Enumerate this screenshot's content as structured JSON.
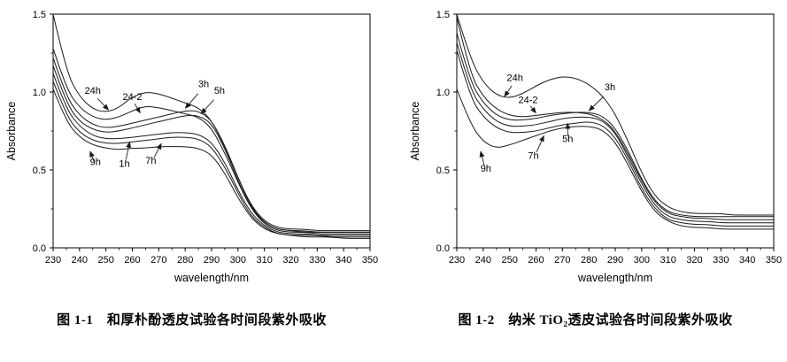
{
  "page": {
    "background": "#ffffff",
    "line_color": "#1a1a1a"
  },
  "chart_data": [
    {
      "name": "uv-absorbance-magnolol",
      "type": "line",
      "caption": "图 1-1　和厚朴酚透皮试验各时间段紫外吸收",
      "xlabel": "wavelength/nm",
      "ylabel": "Absorbance",
      "xlim": [
        230,
        350
      ],
      "ylim": [
        0,
        1.5
      ],
      "xticks": [
        230,
        240,
        250,
        260,
        270,
        280,
        290,
        300,
        310,
        320,
        330,
        340,
        350
      ],
      "yticks": [
        0,
        0.5,
        1.0,
        1.5
      ],
      "ytick_labels": [
        "0.0",
        "0.5",
        "1.0",
        "1.5"
      ],
      "x": [
        230,
        235,
        240,
        245,
        250,
        255,
        260,
        265,
        270,
        275,
        280,
        285,
        290,
        295,
        300,
        305,
        310,
        315,
        320,
        325,
        330,
        335,
        340,
        345,
        350
      ],
      "series": [
        {
          "name": "24h",
          "values": [
            1.5,
            1.13,
            0.97,
            0.89,
            0.87,
            0.9,
            0.97,
            1.0,
            0.99,
            0.96,
            0.93,
            0.9,
            0.82,
            0.65,
            0.45,
            0.27,
            0.17,
            0.13,
            0.12,
            0.12,
            0.11,
            0.11,
            0.11,
            0.11,
            0.11
          ]
        },
        {
          "name": "24-2",
          "values": [
            1.28,
            1.02,
            0.9,
            0.84,
            0.82,
            0.84,
            0.88,
            0.91,
            0.9,
            0.88,
            0.86,
            0.84,
            0.77,
            0.61,
            0.42,
            0.25,
            0.16,
            0.12,
            0.11,
            0.11,
            0.1,
            0.1,
            0.1,
            0.1,
            0.1
          ]
        },
        {
          "name": "3h",
          "values": [
            1.22,
            0.97,
            0.85,
            0.79,
            0.77,
            0.78,
            0.8,
            0.82,
            0.84,
            0.86,
            0.88,
            0.88,
            0.82,
            0.66,
            0.45,
            0.26,
            0.16,
            0.12,
            0.11,
            0.1,
            0.1,
            0.1,
            0.1,
            0.1,
            0.1
          ]
        },
        {
          "name": "5h",
          "values": [
            1.17,
            0.93,
            0.81,
            0.76,
            0.74,
            0.75,
            0.77,
            0.79,
            0.81,
            0.83,
            0.85,
            0.85,
            0.8,
            0.64,
            0.43,
            0.25,
            0.15,
            0.11,
            0.1,
            0.1,
            0.09,
            0.09,
            0.09,
            0.09,
            0.09
          ]
        },
        {
          "name": "1h",
          "values": [
            1.12,
            0.89,
            0.78,
            0.72,
            0.7,
            0.7,
            0.71,
            0.72,
            0.73,
            0.74,
            0.74,
            0.73,
            0.68,
            0.55,
            0.37,
            0.22,
            0.14,
            0.1,
            0.09,
            0.09,
            0.08,
            0.08,
            0.08,
            0.08,
            0.08
          ]
        },
        {
          "name": "7h",
          "values": [
            1.07,
            0.85,
            0.74,
            0.69,
            0.67,
            0.67,
            0.68,
            0.69,
            0.7,
            0.71,
            0.71,
            0.7,
            0.65,
            0.52,
            0.35,
            0.2,
            0.13,
            0.09,
            0.08,
            0.08,
            0.08,
            0.07,
            0.07,
            0.07,
            0.07
          ]
        },
        {
          "name": "9h",
          "values": [
            1.02,
            0.81,
            0.71,
            0.66,
            0.64,
            0.63,
            0.64,
            0.64,
            0.65,
            0.65,
            0.65,
            0.64,
            0.6,
            0.48,
            0.32,
            0.19,
            0.12,
            0.09,
            0.08,
            0.07,
            0.07,
            0.07,
            0.06,
            0.06,
            0.06
          ]
        }
      ],
      "annotations": [
        {
          "label": "24h",
          "tx": 245,
          "ty": 0.99,
          "ax": 251,
          "ay": 0.885
        },
        {
          "label": "24-2",
          "tx": 260,
          "ty": 0.95,
          "ax": 263,
          "ay": 0.865
        },
        {
          "label": "3h",
          "tx": 287,
          "ty": 1.03,
          "ax": 280,
          "ay": 0.895
        },
        {
          "label": "5h",
          "tx": 293,
          "ty": 0.99,
          "ax": 286,
          "ay": 0.86
        },
        {
          "label": "9h",
          "tx": 246,
          "ty": 0.53,
          "ax": 244,
          "ay": 0.62
        },
        {
          "label": "1h",
          "tx": 257,
          "ty": 0.52,
          "ax": 259,
          "ay": 0.68
        },
        {
          "label": "7h",
          "tx": 267,
          "ty": 0.54,
          "ax": 271,
          "ay": 0.67
        }
      ]
    },
    {
      "name": "uv-absorbance-nano-tio2",
      "type": "line",
      "caption": "图 1-2　纳米 TiO₂透皮试验各时间段紫外吸收",
      "xlabel": "wavelength/nm",
      "ylabel": "Absorbance",
      "xlim": [
        230,
        350
      ],
      "ylim": [
        0,
        1.5
      ],
      "xticks": [
        230,
        240,
        250,
        260,
        270,
        280,
        290,
        300,
        310,
        320,
        330,
        340,
        350
      ],
      "yticks": [
        0,
        0.5,
        1.0,
        1.5
      ],
      "ytick_labels": [
        "0.0",
        "0.5",
        "1.0",
        "1.5"
      ],
      "x": [
        230,
        235,
        240,
        245,
        250,
        255,
        260,
        265,
        270,
        275,
        280,
        285,
        290,
        295,
        300,
        305,
        310,
        315,
        320,
        325,
        330,
        335,
        340,
        345,
        350
      ],
      "series": [
        {
          "name": "24h",
          "values": [
            1.5,
            1.22,
            1.06,
            0.98,
            0.96,
            0.99,
            1.04,
            1.08,
            1.1,
            1.09,
            1.05,
            0.98,
            0.86,
            0.68,
            0.48,
            0.33,
            0.26,
            0.23,
            0.22,
            0.22,
            0.22,
            0.21,
            0.21,
            0.21,
            0.21
          ]
        },
        {
          "name": "24-2",
          "values": [
            1.48,
            1.12,
            0.97,
            0.89,
            0.85,
            0.84,
            0.85,
            0.86,
            0.87,
            0.87,
            0.86,
            0.83,
            0.75,
            0.6,
            0.43,
            0.29,
            0.22,
            0.2,
            0.19,
            0.19,
            0.18,
            0.18,
            0.18,
            0.18,
            0.18
          ]
        },
        {
          "name": "3h",
          "values": [
            1.38,
            1.07,
            0.93,
            0.85,
            0.82,
            0.82,
            0.83,
            0.85,
            0.86,
            0.87,
            0.87,
            0.85,
            0.77,
            0.62,
            0.44,
            0.3,
            0.23,
            0.21,
            0.2,
            0.2,
            0.2,
            0.2,
            0.2,
            0.2,
            0.2
          ]
        },
        {
          "name": "5h",
          "values": [
            1.32,
            1.02,
            0.89,
            0.81,
            0.78,
            0.78,
            0.79,
            0.81,
            0.83,
            0.84,
            0.84,
            0.82,
            0.74,
            0.58,
            0.41,
            0.27,
            0.2,
            0.18,
            0.17,
            0.17,
            0.16,
            0.16,
            0.16,
            0.16,
            0.16
          ]
        },
        {
          "name": "7h",
          "values": [
            1.27,
            0.97,
            0.84,
            0.77,
            0.74,
            0.74,
            0.75,
            0.77,
            0.79,
            0.8,
            0.81,
            0.79,
            0.71,
            0.56,
            0.38,
            0.25,
            0.18,
            0.16,
            0.15,
            0.15,
            0.14,
            0.14,
            0.14,
            0.14,
            0.14
          ]
        },
        {
          "name": "9h",
          "values": [
            1.02,
            0.8,
            0.68,
            0.64,
            0.66,
            0.69,
            0.72,
            0.75,
            0.77,
            0.78,
            0.78,
            0.76,
            0.68,
            0.53,
            0.36,
            0.23,
            0.17,
            0.14,
            0.13,
            0.13,
            0.12,
            0.12,
            0.12,
            0.12,
            0.12
          ]
        }
      ],
      "annotations": [
        {
          "label": "24h",
          "tx": 252,
          "ty": 1.07,
          "ax": 248,
          "ay": 0.97
        },
        {
          "label": "24-2",
          "tx": 257,
          "ty": 0.93,
          "ax": 260,
          "ay": 0.865
        },
        {
          "label": "3h",
          "tx": 288,
          "ty": 1.01,
          "ax": 280,
          "ay": 0.88
        },
        {
          "label": "5h",
          "tx": 272,
          "ty": 0.68,
          "ax": 272,
          "ay": 0.8
        },
        {
          "label": "7h",
          "tx": 259,
          "ty": 0.57,
          "ax": 263,
          "ay": 0.72
        },
        {
          "label": "9h",
          "tx": 241,
          "ty": 0.49,
          "ax": 239,
          "ay": 0.62
        }
      ]
    }
  ]
}
